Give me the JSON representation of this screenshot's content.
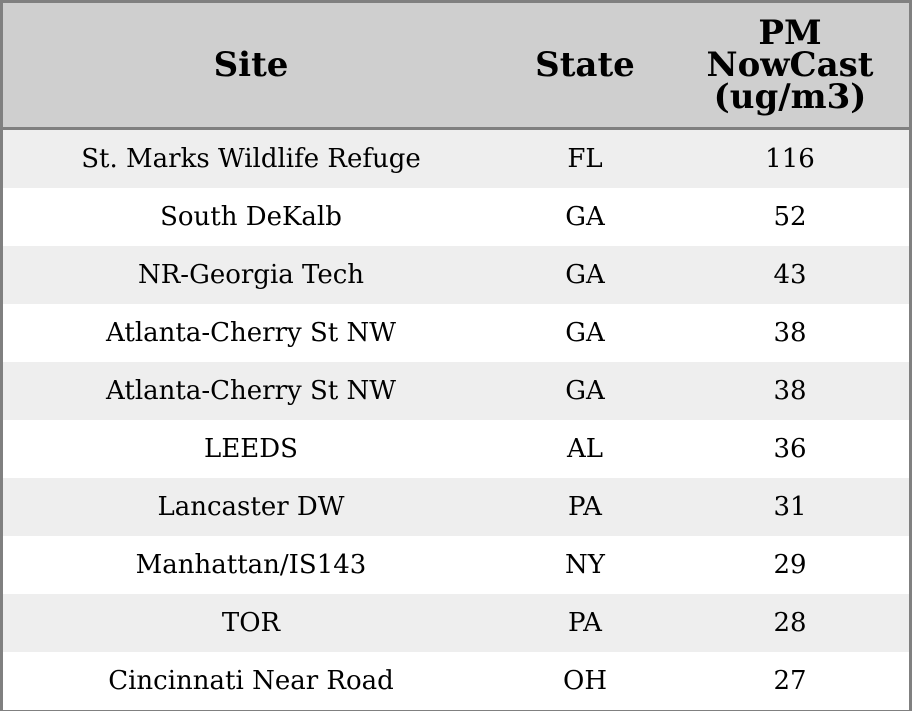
{
  "chart_data": {
    "type": "table",
    "columns": [
      "Site",
      "State",
      "PM NowCast (ug/m3)"
    ],
    "header_lines": {
      "site": [
        "Site"
      ],
      "state": [
        "State"
      ],
      "pm": [
        "PM",
        "NowCast",
        "(ug/m3)"
      ]
    },
    "rows": [
      {
        "site": "St. Marks Wildlife Refuge",
        "state": "FL",
        "pm": "116"
      },
      {
        "site": "South DeKalb",
        "state": "GA",
        "pm": "52"
      },
      {
        "site": "NR-Georgia Tech",
        "state": "GA",
        "pm": "43"
      },
      {
        "site": "Atlanta-Cherry St NW",
        "state": "GA",
        "pm": "38"
      },
      {
        "site": "Atlanta-Cherry St NW",
        "state": "GA",
        "pm": "38"
      },
      {
        "site": "LEEDS",
        "state": "AL",
        "pm": "36"
      },
      {
        "site": "Lancaster DW",
        "state": "PA",
        "pm": "31"
      },
      {
        "site": "Manhattan/IS143",
        "state": "NY",
        "pm": "29"
      },
      {
        "site": "TOR",
        "state": "PA",
        "pm": "28"
      },
      {
        "site": "Cincinnati Near Road",
        "state": "OH",
        "pm": "27"
      }
    ]
  },
  "colors": {
    "header_background": "#cfcfcf",
    "odd_row_background": "#eeeeee",
    "even_row_background": "#ffffff",
    "border": "#808080"
  }
}
